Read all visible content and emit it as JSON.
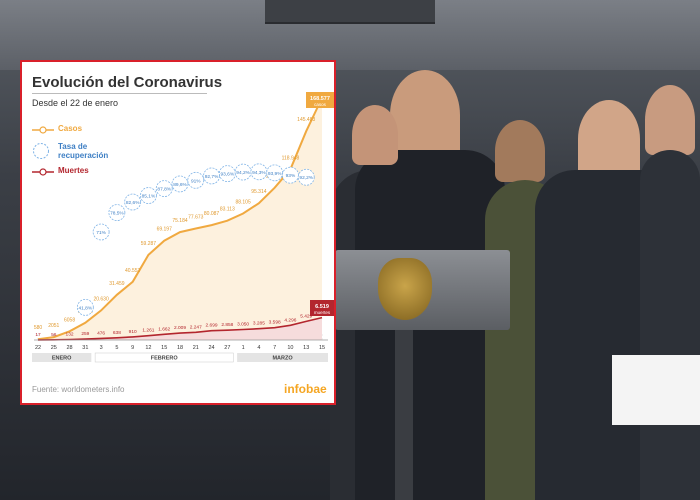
{
  "chart_data": {
    "type": "line",
    "title": "Evolución del Coronavirus",
    "subtitle": "Desde el 22 de enero",
    "legend": [
      "Casos",
      "Tasa de recuperación",
      "Muertes"
    ],
    "x_ticks": [
      "22",
      "25",
      "28",
      "31",
      "3",
      "5",
      "9",
      "12",
      "15",
      "18",
      "21",
      "24",
      "27",
      "1",
      "4",
      "7",
      "10",
      "13",
      "15"
    ],
    "months": [
      "ENERO",
      "FEBRERO",
      "MARZO"
    ],
    "series": [
      {
        "name": "Casos",
        "color": "#f0a940",
        "values": [
          580,
          2051,
          6058,
          11950,
          20630,
          31459,
          40553,
          59287,
          69197,
          75184,
          77673,
          80087,
          83113,
          88105,
          95314,
          106099,
          118948,
          145483,
          168577
        ],
        "labels": [
          "580",
          "2051",
          "6058",
          "11.950",
          "20.630",
          "31.459",
          "40.553",
          "59.287",
          "69.197",
          "75.184",
          "77.673",
          "80.087",
          "83.113",
          "88.105",
          "95.314",
          "106.099",
          "118.948",
          "145.483",
          "168.577"
        ]
      },
      {
        "name": "Tasa de recuperación",
        "color": "#7fb3e6",
        "values": [
          null,
          null,
          null,
          41.8,
          71.0,
          78.5,
          82.6,
          85.1,
          87.8,
          89.6,
          91.0,
          92.7,
          93.6,
          94.2,
          94.3,
          93.9,
          93.0,
          92.2,
          null
        ],
        "labels": [
          "",
          "",
          "",
          "41,8%",
          "71%",
          "78,5%",
          "82,6%",
          "85,1%",
          "87,8%",
          "89,6%",
          "91%",
          "92,7%",
          "93,6%",
          "94,2%",
          "94,3%",
          "93,9%",
          "93%",
          "92,2%",
          ""
        ]
      },
      {
        "name": "Muertes",
        "color": "#b3262e",
        "values": [
          17,
          56,
          132,
          259,
          476,
          638,
          910,
          1261,
          1662,
          2009,
          2247,
          2699,
          2858,
          3050,
          3285,
          3598,
          4296,
          5429,
          6519
        ],
        "labels": [
          "17",
          "56",
          "132",
          "259",
          "476",
          "638",
          "910",
          "1.261",
          "1.662",
          "2.009",
          "2.247",
          "2.699",
          "2.858",
          "3.050",
          "3.285",
          "3.598",
          "4.296",
          "5.429",
          "6.519"
        ]
      }
    ],
    "end_labels": {
      "casos_value": "168.577",
      "casos_text": "casos",
      "muertes_value": "6.519",
      "muertes_text": "muertes"
    }
  },
  "footer": {
    "source": "Fuente: worldometers.info",
    "brand": "infobae"
  }
}
